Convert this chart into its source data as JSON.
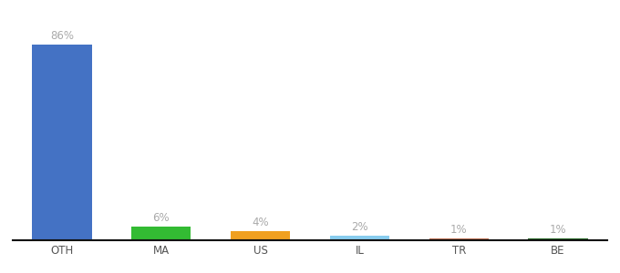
{
  "categories": [
    "OTH",
    "MA",
    "US",
    "IL",
    "TR",
    "BE"
  ],
  "values": [
    86,
    6,
    4,
    2,
    1,
    1
  ],
  "bar_colors": [
    "#4472c4",
    "#33bb33",
    "#f0a020",
    "#88ccee",
    "#c07050",
    "#226622"
  ],
  "label_color": "#aaaaaa",
  "axis_line_color": "#111111",
  "background_color": "#ffffff",
  "ylim": [
    0,
    96
  ],
  "bar_width": 0.6,
  "label_fontsize": 8.5,
  "tick_fontsize": 8.5,
  "tick_color": "#555555"
}
